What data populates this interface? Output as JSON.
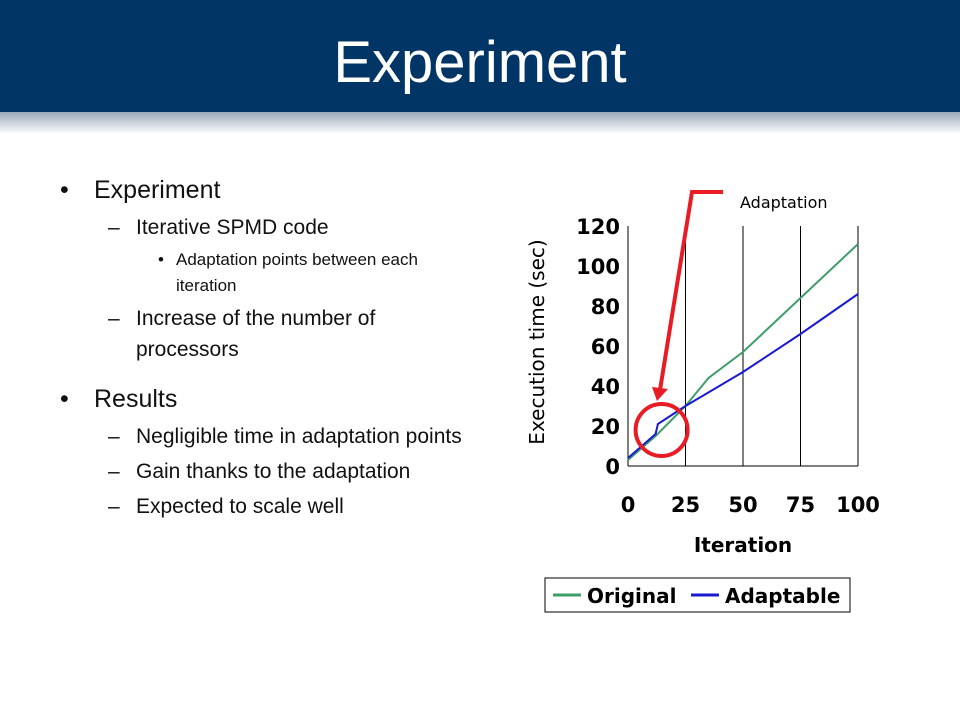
{
  "slide": {
    "title": "Experiment",
    "bullets": [
      {
        "level": 1,
        "text": "Experiment"
      },
      {
        "level": 2,
        "text": "Iterative SPMD code"
      },
      {
        "level": 3,
        "text": "Adaptation points between each iteration"
      },
      {
        "level": 2,
        "text": "Increase of the number of processors"
      },
      {
        "level": 1,
        "text": "Results"
      },
      {
        "level": 2,
        "text": "Negligible time in adaptation points"
      },
      {
        "level": 2,
        "text": "Gain thanks to the adaptation"
      },
      {
        "level": 2,
        "text": "Expected to scale well"
      }
    ]
  },
  "chart_data": {
    "type": "line",
    "xlabel": "Iteration",
    "ylabel": "Execution time (sec)",
    "xlim": [
      0,
      100
    ],
    "ylim": [
      0,
      120
    ],
    "xticks": [
      0,
      25,
      50,
      75,
      100
    ],
    "yticks": [
      0,
      20,
      40,
      60,
      80,
      100,
      120
    ],
    "grid": "vertical",
    "legend_position": "bottom",
    "series": [
      {
        "name": "Original",
        "color": "#3e9e6a",
        "x": [
          0,
          12,
          25,
          35,
          50,
          75,
          100
        ],
        "y": [
          3,
          15,
          30,
          44,
          57,
          84,
          111
        ]
      },
      {
        "name": "Adaptable",
        "color": "#1a1ad0",
        "x": [
          0,
          12,
          13,
          25,
          50,
          75,
          100
        ],
        "y": [
          4,
          16,
          21,
          30,
          47,
          66,
          86
        ]
      }
    ],
    "annotation": {
      "text": "Adaptation",
      "x": 12,
      "y": 18,
      "color": "#e81c24"
    }
  }
}
